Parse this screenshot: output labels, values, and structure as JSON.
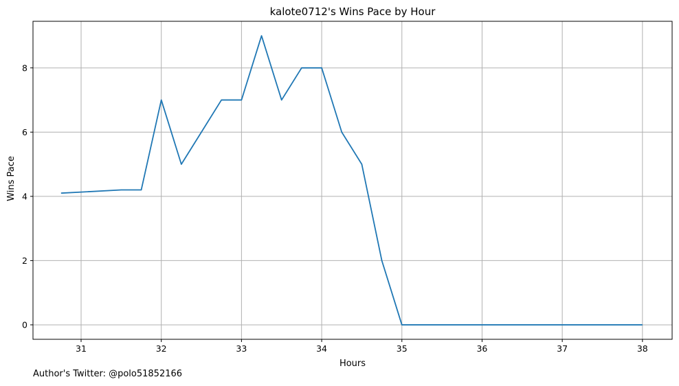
{
  "chart_data": {
    "type": "line",
    "title": "kalote0712's Wins Pace by Hour",
    "xlabel": "Hours",
    "ylabel": "Wins Pace",
    "xlim": [
      30.4,
      38.37
    ],
    "ylim": [
      -0.45,
      9.45
    ],
    "x_ticks": [
      31,
      32,
      33,
      34,
      35,
      36,
      37,
      38
    ],
    "y_ticks": [
      0,
      2,
      4,
      6,
      8
    ],
    "grid": true,
    "series": [
      {
        "color": "#1f77b4",
        "x": [
          30.75,
          31.5,
          31.75,
          32.0,
          32.25,
          32.5,
          32.75,
          33.0,
          33.25,
          33.5,
          33.75,
          34.0,
          34.25,
          34.5,
          34.75,
          35.0,
          35.25,
          35.5,
          35.75,
          36.0,
          36.25,
          36.5,
          36.75,
          37.0,
          37.25,
          37.5,
          37.75,
          38.0
        ],
        "y": [
          4.1,
          4.2,
          4.2,
          7,
          5,
          6,
          7,
          7,
          9,
          7,
          8,
          8,
          6,
          5,
          2,
          0,
          0,
          0,
          0,
          0,
          0,
          0,
          0,
          0,
          0,
          0,
          0,
          0
        ]
      }
    ]
  },
  "footer": "Author's Twitter: @polo51852166"
}
